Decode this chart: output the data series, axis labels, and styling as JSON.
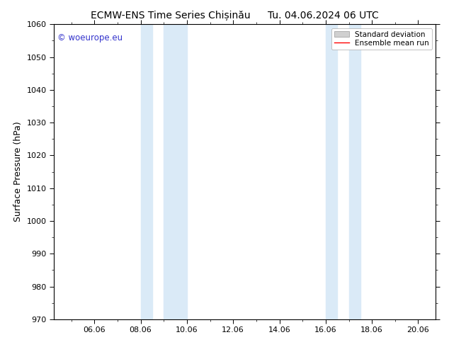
{
  "title": "ECMW-ENS Time Series Chișinău      Tu. 04.06.2024 06 UTC",
  "ylabel": "Surface Pressure (hPa)",
  "ylim": [
    970,
    1060
  ],
  "yticks": [
    970,
    980,
    990,
    1000,
    1010,
    1020,
    1030,
    1040,
    1050,
    1060
  ],
  "xlim_start": 4.25,
  "xlim_end": 20.75,
  "xtick_positions": [
    6.0,
    8.0,
    10.0,
    12.0,
    14.0,
    16.0,
    18.0,
    20.0
  ],
  "xtick_labels": [
    "06.06",
    "08.06",
    "10.06",
    "12.06",
    "14.06",
    "16.06",
    "18.06",
    "20.06"
  ],
  "shaded_bands": [
    {
      "x_start": 8.0,
      "x_end": 8.5
    },
    {
      "x_start": 9.0,
      "x_end": 10.0
    },
    {
      "x_start": 16.0,
      "x_end": 16.5
    },
    {
      "x_start": 17.0,
      "x_end": 17.5
    }
  ],
  "shaded_color": "#daeaf7",
  "watermark_text": "© woeurope.eu",
  "watermark_color": "#3333cc",
  "legend_std_label": "Standard deviation",
  "legend_mean_label": "Ensemble mean run",
  "legend_std_color": "#d0d0d0",
  "legend_mean_color": "#ff0000",
  "background_color": "#ffffff",
  "plot_bg_color": "#ffffff",
  "title_fontsize": 10,
  "tick_fontsize": 8,
  "ylabel_fontsize": 9
}
